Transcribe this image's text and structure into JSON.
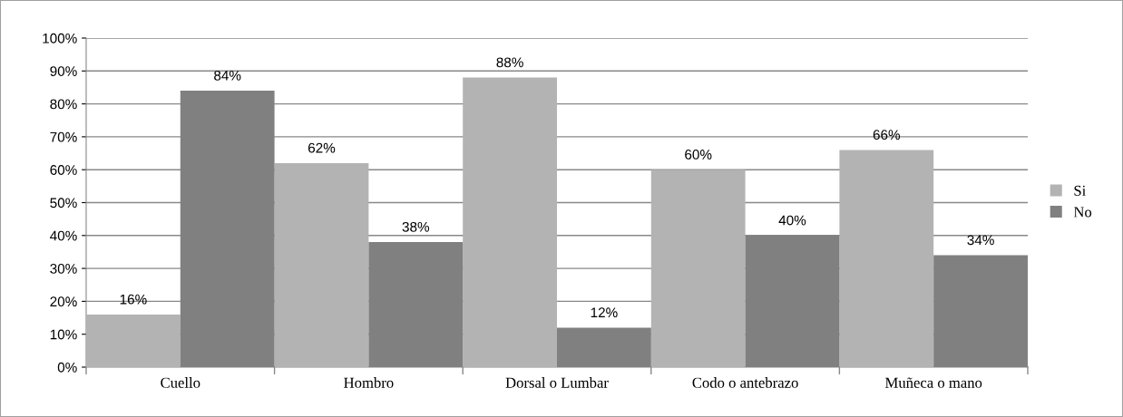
{
  "chart_data": {
    "type": "bar",
    "categories": [
      "Cuello",
      "Hombro",
      "Dorsal o Lumbar",
      "Codo o antebrazo",
      "Muñeca o mano"
    ],
    "series": [
      {
        "name": "Si",
        "color": "#b3b3b3",
        "values": [
          16,
          62,
          88,
          60,
          66
        ],
        "value_labels": [
          "16%",
          "62%",
          "88%",
          "60%",
          "66%"
        ]
      },
      {
        "name": "No",
        "color": "#808080",
        "values": [
          84,
          38,
          12,
          40,
          34
        ],
        "value_labels": [
          "84%",
          "38%",
          "12%",
          "40%",
          "34%"
        ]
      }
    ],
    "ylim": [
      0,
      100
    ],
    "yticks": [
      {
        "value": 0,
        "label": "0%"
      },
      {
        "value": 10,
        "label": "10%"
      },
      {
        "value": 20,
        "label": "20%"
      },
      {
        "value": 30,
        "label": "30%"
      },
      {
        "value": 40,
        "label": "40%"
      },
      {
        "value": 50,
        "label": "50%"
      },
      {
        "value": 60,
        "label": "60%"
      },
      {
        "value": 70,
        "label": "70%"
      },
      {
        "value": 80,
        "label": "80%"
      },
      {
        "value": 90,
        "label": "90%"
      },
      {
        "value": 100,
        "label": "100%"
      }
    ],
    "grid": "y",
    "legend": "right"
  }
}
